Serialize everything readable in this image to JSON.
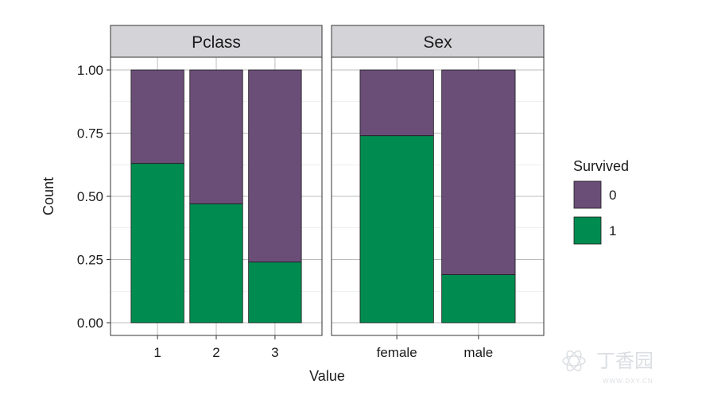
{
  "chart_data": {
    "type": "bar",
    "stacked": true,
    "ylabel": "Count",
    "xlabel": "Value",
    "ylim": [
      0,
      1
    ],
    "yticks": [
      "0.00",
      "0.25",
      "0.50",
      "0.75",
      "1.00"
    ],
    "legend": {
      "title": "Survived",
      "entries": [
        {
          "label": "0",
          "color": "#6a4e77"
        },
        {
          "label": "1",
          "color": "#008c50"
        }
      ]
    },
    "panels": [
      {
        "title": "Pclass",
        "categories": [
          "1",
          "2",
          "3"
        ],
        "series": [
          {
            "name": "1",
            "values": [
              0.63,
              0.47,
              0.24
            ]
          },
          {
            "name": "0",
            "values": [
              0.37,
              0.53,
              0.76
            ]
          }
        ]
      },
      {
        "title": "Sex",
        "categories": [
          "female",
          "male"
        ],
        "series": [
          {
            "name": "1",
            "values": [
              0.74,
              0.19
            ]
          },
          {
            "name": "0",
            "values": [
              0.26,
              0.81
            ]
          }
        ]
      }
    ],
    "colors": {
      "strip_bg": "#d4d4d8",
      "grid": "#bdbdbd",
      "border": "#333333"
    }
  },
  "watermark": {
    "text": "丁香园",
    "subtext": "WWW.DXY.CN"
  }
}
